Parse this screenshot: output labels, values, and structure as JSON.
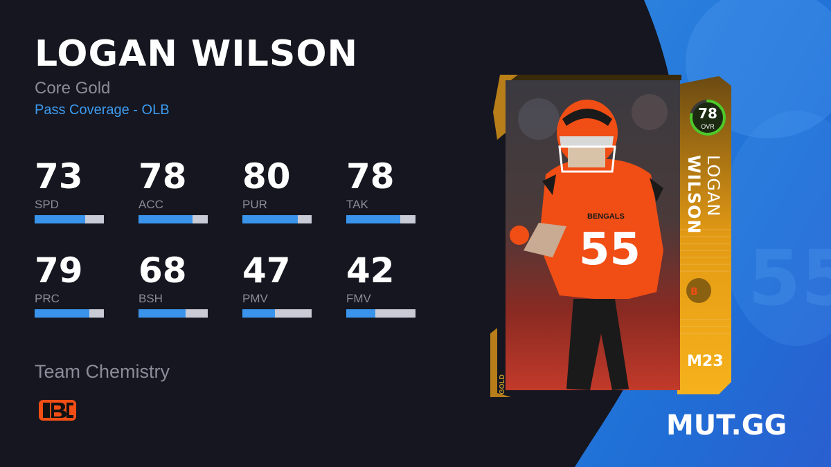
{
  "player": {
    "name": "LOGAN WILSON",
    "program": "Core Gold",
    "archetype": "Pass Coverage - OLB"
  },
  "stats": [
    {
      "value": "73",
      "label": "SPD",
      "fill": 0.73
    },
    {
      "value": "78",
      "label": "ACC",
      "fill": 0.78
    },
    {
      "value": "80",
      "label": "PUR",
      "fill": 0.8
    },
    {
      "value": "78",
      "label": "TAK",
      "fill": 0.78
    },
    {
      "value": "79",
      "label": "PRC",
      "fill": 0.79
    },
    {
      "value": "68",
      "label": "BSH",
      "fill": 0.68
    },
    {
      "value": "47",
      "label": "PMV",
      "fill": 0.47
    },
    {
      "value": "42",
      "label": "FMV",
      "fill": 0.42
    }
  ],
  "chemistry": {
    "title": "Team Chemistry",
    "team_logo_icon": "bengals-logo-icon"
  },
  "card": {
    "ovr": "78",
    "ovr_label": "OVR",
    "ovr_fill": 0.78,
    "first_name": "LOGAN",
    "last_name": "WILSON",
    "year": "M23",
    "tier": "GOLD",
    "jersey_number": "55",
    "jersey_text": "BENGALS"
  },
  "brand": "MUT.GG",
  "colors": {
    "background": "#15161f",
    "accent_blue": "#3a94ec",
    "archetype_blue": "#3d9bf0",
    "gold": "#f2a516",
    "bengals_orange": "#f04e15",
    "muted_text": "#8a8c99"
  }
}
